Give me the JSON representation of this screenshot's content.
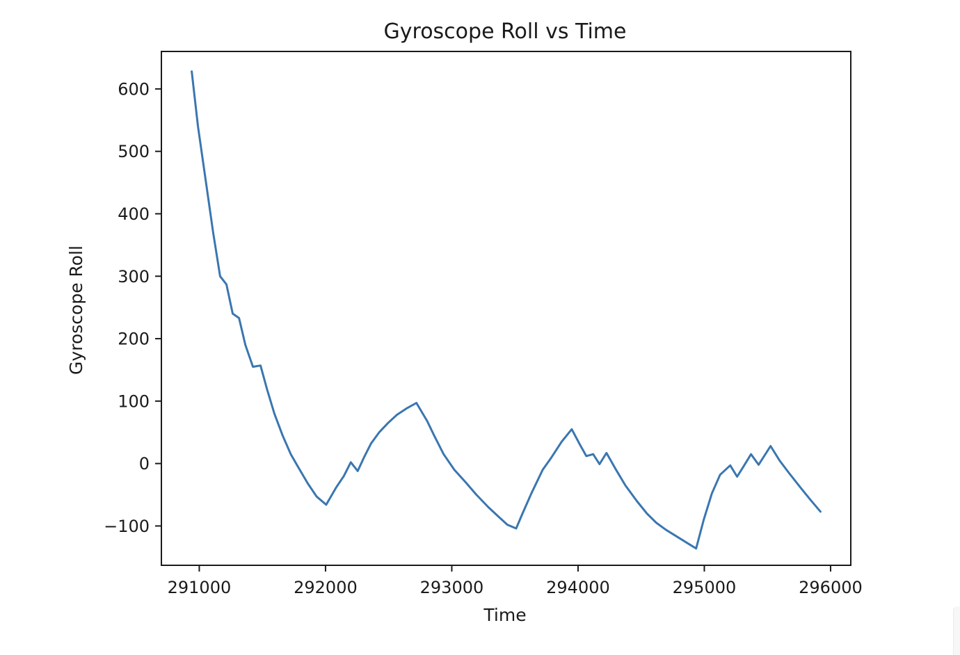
{
  "chart_data": {
    "type": "line",
    "title": "Gyroscope Roll vs Time",
    "xlabel": "Time",
    "ylabel": "Gyroscope Roll",
    "xlim": [
      290700,
      296160
    ],
    "ylim": [
      -163,
      660
    ],
    "xticks": [
      291000,
      292000,
      293000,
      294000,
      295000,
      296000
    ],
    "yticks": [
      -100,
      0,
      100,
      200,
      300,
      400,
      500,
      600
    ],
    "ytick_labels": [
      "−100",
      "0",
      "100",
      "200",
      "300",
      "400",
      "500",
      "600"
    ],
    "grid": false,
    "line_color": "#3a76b0",
    "series": [
      {
        "x": [
          290940,
          290990,
          291050,
          291110,
          291165,
          291215,
          291265,
          291315,
          291365,
          291425,
          291485,
          291535,
          291595,
          291660,
          291725,
          291790,
          291860,
          291930,
          292005,
          292085,
          292145,
          292200,
          292255,
          292305,
          292360,
          292425,
          292495,
          292565,
          292640,
          292720,
          292805,
          292860,
          292935,
          293020,
          293110,
          293195,
          293290,
          293370,
          293440,
          293510,
          293560,
          293630,
          293720,
          293790,
          293870,
          293950,
          294010,
          294065,
          294120,
          294170,
          294225,
          294295,
          294375,
          294465,
          294545,
          294620,
          294695,
          294775,
          294855,
          294935,
          294995,
          295060,
          295125,
          295205,
          295260,
          295310,
          295370,
          295430,
          295525,
          295595,
          295670,
          295760,
          295840,
          295920
        ],
        "y": [
          628,
          540,
          455,
          370,
          300,
          287,
          240,
          233,
          190,
          155,
          157,
          120,
          80,
          45,
          15,
          -8,
          -32,
          -53,
          -66,
          -38,
          -20,
          2,
          -12,
          10,
          32,
          50,
          65,
          78,
          88,
          97,
          68,
          45,
          15,
          -10,
          -30,
          -50,
          -70,
          -85,
          -98,
          -104,
          -80,
          -48,
          -10,
          10,
          35,
          55,
          32,
          12,
          15,
          -1,
          17,
          -8,
          -35,
          -60,
          -80,
          -95,
          -106,
          -116,
          -126,
          -136,
          -90,
          -48,
          -18,
          -3,
          -21,
          -5,
          15,
          -2,
          28,
          5,
          -15,
          -38,
          -58,
          -77
        ]
      }
    ]
  }
}
